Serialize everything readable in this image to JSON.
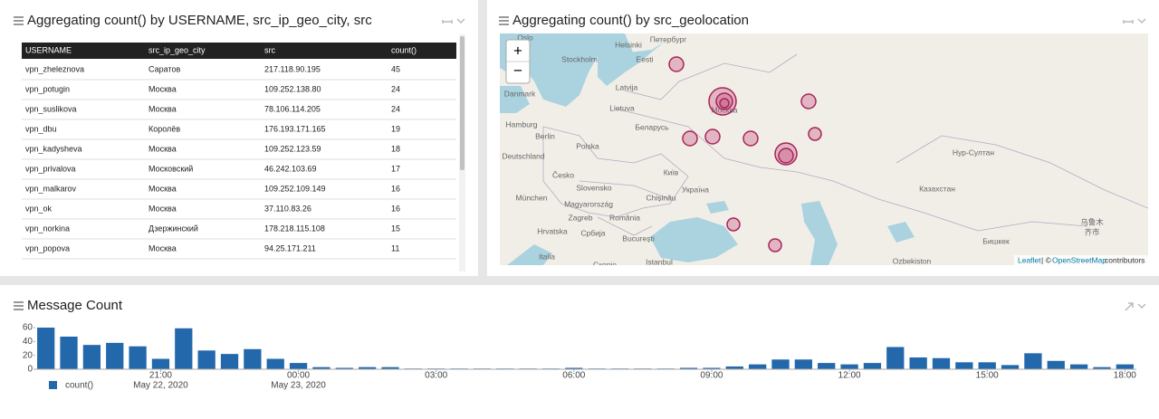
{
  "table_panel": {
    "title": "Aggregating count() by USERNAME, src_ip_geo_city, src",
    "columns": [
      "USERNAME",
      "src_ip_geo_city",
      "src",
      "count()"
    ],
    "rows": [
      [
        "vpn_zheleznova",
        "Саратов",
        "217.118.90.195",
        45
      ],
      [
        "vpn_potugin",
        "Москва",
        "109.252.138.80",
        24
      ],
      [
        "vpn_suslikova",
        "Москва",
        "78.106.114.205",
        24
      ],
      [
        "vpn_dbu",
        "Королёв",
        "176.193.171.165",
        19
      ],
      [
        "vpn_kadysheva",
        "Москва",
        "109.252.123.59",
        18
      ],
      [
        "vpn_privalova",
        "Московский",
        "46.242.103.69",
        17
      ],
      [
        "vpn_malkarov",
        "Москва",
        "109.252.109.149",
        16
      ],
      [
        "vpn_ok",
        "Москва",
        "37.110.83.26",
        16
      ],
      [
        "vpn_norkina",
        "Дзержинский",
        "178.218.115.108",
        15
      ],
      [
        "vpn_popova",
        "Москва",
        "94.25.171.211",
        11
      ]
    ]
  },
  "map_panel": {
    "title": "Aggregating count() by src_geolocation",
    "zoom_in": "+",
    "zoom_out": "−",
    "labels": [
      "Oslo",
      "Helsinki",
      "Петербург",
      "Stockholm",
      "Eesti",
      "Latvija",
      "Danmark",
      "Lietuva",
      "Москва",
      "Hamburg",
      "Беларусь",
      "Berlin",
      "Polska",
      "Deutschland",
      "Česko",
      "Slovensko",
      "Київ",
      "Україна",
      "München",
      "Magyarország",
      "Chișinău",
      "Zagreb",
      "România",
      "Hrvatska",
      "Србија",
      "București",
      "Italia",
      "Istanbul",
      "Скопје",
      "Нур-Султан",
      "Казахстан",
      "Бишкек",
      "乌鲁木",
      "齐市",
      "Ozbekiston"
    ],
    "attribution_link": "Leaflet",
    "attribution_sep": "| ©",
    "attribution_osm": "OpenStreetMap",
    "attribution_rest": "contributors"
  },
  "chart_data": {
    "type": "bar",
    "title": "Message Count",
    "categories": [
      null,
      null,
      null,
      null,
      null,
      null,
      null,
      null,
      null,
      null,
      null,
      null,
      null,
      null,
      null,
      null,
      null,
      null,
      null,
      null,
      null,
      null,
      null,
      null,
      null,
      null,
      null,
      null,
      null,
      null,
      null,
      null,
      null,
      null,
      null,
      null,
      null,
      null,
      null,
      null,
      null,
      null,
      null,
      null,
      null,
      null,
      null,
      null
    ],
    "series": [
      {
        "name": "count()",
        "color": "#2268ab",
        "values": [
          60,
          47,
          35,
          38,
          33,
          15,
          59,
          27,
          22,
          29,
          15,
          9,
          3,
          2,
          3,
          3,
          1,
          1,
          1,
          1,
          1,
          1,
          1,
          2,
          1,
          1,
          1,
          1,
          2,
          2,
          4,
          7,
          14,
          14,
          9,
          7,
          9,
          32,
          17,
          16,
          10,
          10,
          6,
          23,
          12,
          7,
          3,
          7
        ]
      }
    ],
    "ylim": [
      0,
      60
    ],
    "yticks": [
      0,
      20,
      40,
      60
    ],
    "xticks": [
      {
        "value": 5,
        "label": "21:00"
      },
      {
        "value": 11,
        "label": "00:00"
      },
      {
        "value": 17,
        "label": "03:00"
      },
      {
        "value": 23,
        "label": "06:00"
      },
      {
        "value": 29,
        "label": "09:00"
      },
      {
        "value": 35,
        "label": "12:00"
      },
      {
        "value": 41,
        "label": "15:00"
      },
      {
        "value": 47,
        "label": "18:00"
      }
    ],
    "date_labels": [
      {
        "value": 5,
        "label": "May 22, 2020"
      },
      {
        "value": 11,
        "label": "May 23, 2020"
      }
    ],
    "legend": "bottom-left"
  }
}
